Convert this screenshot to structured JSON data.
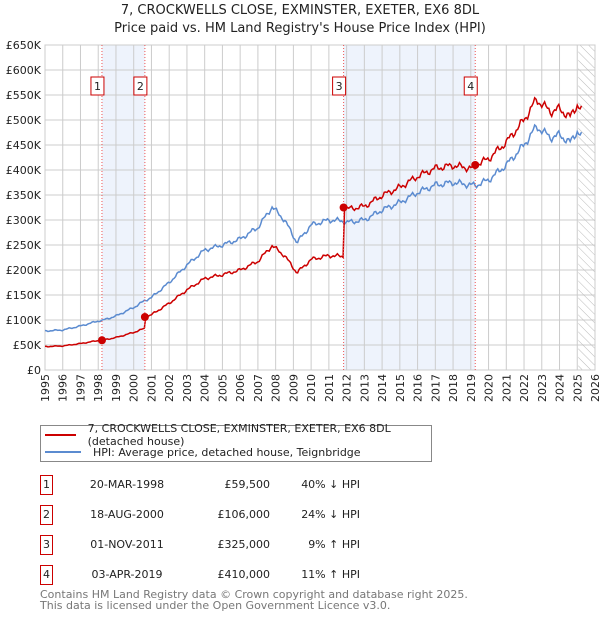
{
  "title": "7, CROCKWELLS CLOSE, EXMINSTER, EXETER, EX6 8DL",
  "subtitle": "Price paid vs. HM Land Registry's House Price Index (HPI)",
  "chart_data": {
    "type": "line",
    "ylim": [
      0,
      650000
    ],
    "xlim": [
      1995,
      2026
    ],
    "ytick_labels": [
      "£0",
      "£50K",
      "£100K",
      "£150K",
      "£200K",
      "£250K",
      "£300K",
      "£350K",
      "£400K",
      "£450K",
      "£500K",
      "£550K",
      "£600K",
      "£650K"
    ],
    "xtick_labels": [
      "1995",
      "1996",
      "1997",
      "1998",
      "1999",
      "2000",
      "2001",
      "2002",
      "2003",
      "2004",
      "2005",
      "2006",
      "2007",
      "2008",
      "2009",
      "2010",
      "2011",
      "2012",
      "2013",
      "2014",
      "2015",
      "2016",
      "2017",
      "2018",
      "2019",
      "2020",
      "2021",
      "2022",
      "2023",
      "2024",
      "2025",
      "2026"
    ],
    "forecast_from": 2025.0,
    "sales": [
      {
        "n": "1",
        "x": 1998.21,
        "price": 59500,
        "date": "20-MAR-1998",
        "price_label": "£59,500",
        "hpi_label": "40% ↓ HPI"
      },
      {
        "n": "2",
        "x": 2000.63,
        "price": 106000,
        "date": "18-AUG-2000",
        "price_label": "£106,000",
        "hpi_label": "24% ↓ HPI"
      },
      {
        "n": "3",
        "x": 2011.83,
        "price": 325000,
        "date": "01-NOV-2011",
        "price_label": "£325,000",
        "hpi_label": "9% ↑ HPI"
      },
      {
        "n": "4",
        "x": 2019.25,
        "price": 410000,
        "date": "03-APR-2019",
        "price_label": "£410,000",
        "hpi_label": "11% ↑ HPI"
      }
    ],
    "series": [
      {
        "name": "7, CROCKWELLS CLOSE, EXMINSTER, EXETER, EX6 8DL (detached house)",
        "color": "#cc0000",
        "derived_from_sales": true
      },
      {
        "name": "HPI: Average price, detached house, Teignbridge",
        "color": "#5b8bd0",
        "x": [
          1995,
          1996,
          1997,
          1998,
          1998.21,
          1999,
          2000,
          2000.63,
          2001,
          2002,
          2003,
          2004,
          2005,
          2006,
          2007,
          2007.8,
          2008.5,
          2009.2,
          2010,
          2011,
          2011.83,
          2012,
          2013,
          2014,
          2015,
          2016,
          2017,
          2018,
          2019,
          2019.25,
          2020,
          2021,
          2022,
          2022.7,
          2023.5,
          2024,
          2024.6,
          2025,
          2025.3
        ],
        "values": [
          78000,
          80000,
          88000,
          98000,
          99000,
          108000,
          125000,
          139000,
          145000,
          175000,
          210000,
          240000,
          250000,
          262000,
          285000,
          326000,
          300000,
          255000,
          290000,
          300000,
          298000,
          295000,
          300000,
          320000,
          335000,
          355000,
          370000,
          375000,
          370000,
          369000,
          380000,
          410000,
          450000,
          487000,
          465000,
          470000,
          455000,
          478000,
          465000
        ]
      }
    ]
  },
  "legend": {
    "red": "7, CROCKWELLS CLOSE, EXMINSTER, EXETER, EX6 8DL (detached house)",
    "blue": "HPI: Average price, detached house, Teignbridge"
  },
  "footer": [
    "Contains HM Land Registry data © Crown copyright and database right 2025.",
    "This data is licensed under the Open Government Licence v3.0."
  ]
}
